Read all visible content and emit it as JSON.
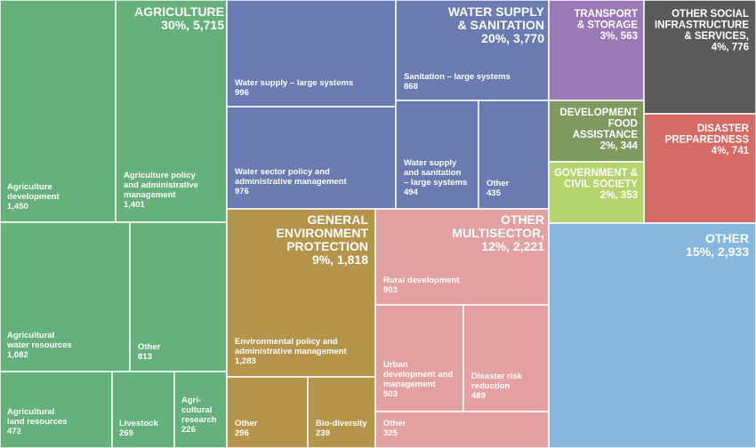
{
  "chart_data": {
    "type": "treemap",
    "categories": [
      {
        "name": "Agriculture",
        "header": [
          "AGRICULTURE",
          "30%, 5,715"
        ],
        "percent": 30,
        "total": 5715,
        "color": "#66b07c",
        "items": [
          {
            "label": [
              "Agriculture",
              "development"
            ],
            "value": "1,450",
            "raw": 1450
          },
          {
            "label": [
              "Agriculture policy",
              "and administrative",
              "management"
            ],
            "value": "1,401",
            "raw": 1401
          },
          {
            "label": [
              "Agricultural",
              "water resources"
            ],
            "value": "1,082",
            "raw": 1082
          },
          {
            "label": [
              "Other"
            ],
            "value": "813",
            "raw": 813
          },
          {
            "label": [
              "Agricultural",
              "land resources"
            ],
            "value": "472",
            "raw": 472
          },
          {
            "label": [
              "Livestock"
            ],
            "value": "269",
            "raw": 269
          },
          {
            "label": [
              "Agri-",
              "cultural",
              "research"
            ],
            "value": "226",
            "raw": 226
          }
        ]
      },
      {
        "name": "Water supply & sanitation",
        "header": [
          "WATER SUPPLY",
          "& SANITATION",
          "20%, 3,770"
        ],
        "percent": 20,
        "total": 3770,
        "color": "#6a7bb2",
        "items": [
          {
            "label": [
              "Water supply – large systems"
            ],
            "value": "996",
            "raw": 996
          },
          {
            "label": [
              "Sanitation – large systems"
            ],
            "value": "868",
            "raw": 868
          },
          {
            "label": [
              "Water sector policy and",
              "administrative management"
            ],
            "value": "976",
            "raw": 976
          },
          {
            "label": [
              "Water supply",
              "and sanitation",
              "– large systems"
            ],
            "value": "494",
            "raw": 494
          },
          {
            "label": [
              "Other"
            ],
            "value": "435",
            "raw": 435
          }
        ]
      },
      {
        "name": "General environment protection",
        "header": [
          "GENERAL",
          "ENVIRONMENT",
          "PROTECTION",
          "9%, 1,818"
        ],
        "percent": 9,
        "total": 1818,
        "color": "#b5954b",
        "items": [
          {
            "label": [
              "Environmental policy and",
              "administrative management"
            ],
            "value": "1,283",
            "raw": 1283
          },
          {
            "label": [
              "Other"
            ],
            "value": "296",
            "raw": 296
          },
          {
            "label": [
              "Bio-diversity"
            ],
            "value": "239",
            "raw": 239
          }
        ]
      },
      {
        "name": "Other multisector",
        "header": [
          "OTHER",
          "MULTISECTOR,",
          "12%, 2,221"
        ],
        "percent": 12,
        "total": 2221,
        "color": "#e4a1a1",
        "items": [
          {
            "label": [
              "Rural development"
            ],
            "value": "903",
            "raw": 903
          },
          {
            "label": [
              "Urban",
              "development and",
              "management"
            ],
            "value": "503",
            "raw": 503
          },
          {
            "label": [
              "Disaster risk",
              "reduction"
            ],
            "value": "489",
            "raw": 489
          },
          {
            "label": [
              "Other"
            ],
            "value": "325",
            "raw": 325
          }
        ]
      },
      {
        "name": "Transport & storage",
        "header": [
          "TRANSPORT",
          "& STORAGE",
          "3%, 563"
        ],
        "percent": 3,
        "total": 563,
        "color": "#9a79b6"
      },
      {
        "name": "Other social infrastructure & services",
        "header": [
          "OTHER SOCIAL",
          "INFRASTRUCTURE",
          "& SERVICES,",
          "4%, 776"
        ],
        "percent": 4,
        "total": 776,
        "color": "#5a5a5a"
      },
      {
        "name": "Development food assistance",
        "header": [
          "DEVELOPMENT",
          "FOOD",
          "ASSISTANCE",
          "2%, 344"
        ],
        "percent": 2,
        "total": 344,
        "color": "#7f9960"
      },
      {
        "name": "Disaster preparedness",
        "header": [
          "DISASTER",
          "PREPAREDNESS",
          "4%, 741"
        ],
        "percent": 4,
        "total": 741,
        "color": "#d56a67"
      },
      {
        "name": "Government & civil society",
        "header": [
          "GOVERNMENT &",
          "CIVIL SOCIETY",
          "2%, 353"
        ],
        "percent": 2,
        "total": 353,
        "color": "#b6d46d"
      },
      {
        "name": "Other",
        "header": [
          "OTHER",
          "15%, 2,933"
        ],
        "percent": 15,
        "total": 2933,
        "color": "#86b7df"
      }
    ]
  }
}
